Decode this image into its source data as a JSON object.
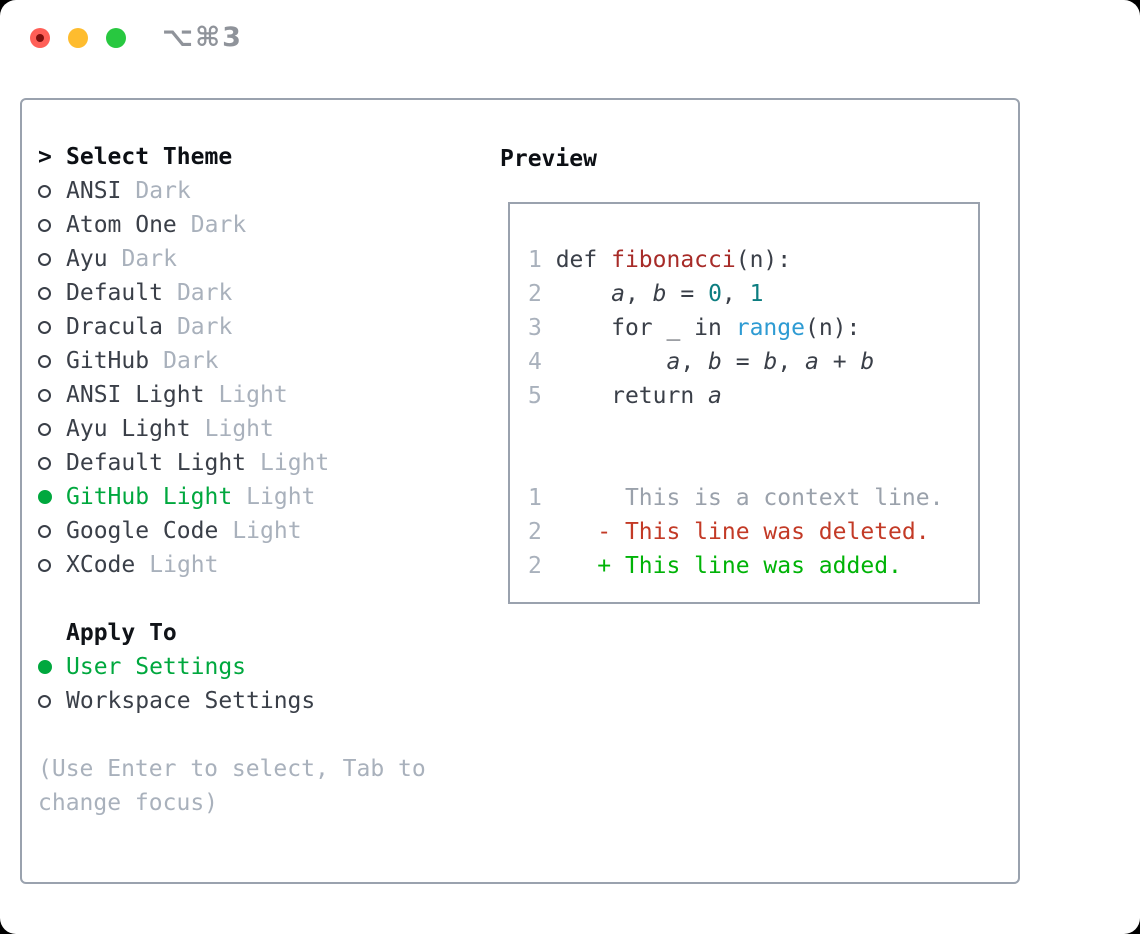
{
  "window": {
    "shortcut_label": "⌥⌘3",
    "traffic_lights": [
      "close",
      "minimize",
      "zoom"
    ]
  },
  "colors": {
    "accent_green": "#00a83e",
    "added_green": "#00b307",
    "deleted_red": "#c33a26",
    "function_red": "#a72b28",
    "number_teal": "#0c7d80",
    "builtin_blue": "#2e9bd3",
    "muted_gray": "#a9b1bc",
    "text_dark": "#3a3f48",
    "border_gray": "#9aa2ae"
  },
  "sidebar": {
    "header": {
      "prompt": ">",
      "label": "Select Theme"
    },
    "themes": [
      {
        "name": "ANSI",
        "variant": "Dark",
        "selected": false
      },
      {
        "name": "Atom One",
        "variant": "Dark",
        "selected": false
      },
      {
        "name": "Ayu",
        "variant": "Dark",
        "selected": false
      },
      {
        "name": "Default",
        "variant": "Dark",
        "selected": false
      },
      {
        "name": "Dracula",
        "variant": "Dark",
        "selected": false
      },
      {
        "name": "GitHub",
        "variant": "Dark",
        "selected": false
      },
      {
        "name": "ANSI Light",
        "variant": "Light",
        "selected": false
      },
      {
        "name": "Ayu Light",
        "variant": "Light",
        "selected": false
      },
      {
        "name": "Default Light",
        "variant": "Light",
        "selected": false
      },
      {
        "name": "GitHub Light",
        "variant": "Light",
        "selected": true
      },
      {
        "name": "Google Code",
        "variant": "Light",
        "selected": false
      },
      {
        "name": "XCode",
        "variant": "Light",
        "selected": false
      }
    ],
    "apply_to": {
      "label": "Apply To",
      "options": [
        {
          "name": "User Settings",
          "selected": true
        },
        {
          "name": "Workspace Settings",
          "selected": false
        }
      ]
    },
    "hint_lines": [
      "(Use Enter to select, Tab to",
      "change focus)"
    ]
  },
  "preview": {
    "title": "Preview",
    "code_lines": [
      {
        "num": "1",
        "tokens": [
          {
            "t": "def ",
            "c": "plain"
          },
          {
            "t": "fibonacci",
            "c": "func"
          },
          {
            "t": "(n):",
            "c": "plain"
          }
        ]
      },
      {
        "num": "2",
        "tokens": [
          {
            "t": "    ",
            "c": "plain"
          },
          {
            "t": "a",
            "c": "var"
          },
          {
            "t": ", ",
            "c": "plain"
          },
          {
            "t": "b",
            "c": "var"
          },
          {
            "t": " = ",
            "c": "plain"
          },
          {
            "t": "0",
            "c": "num"
          },
          {
            "t": ", ",
            "c": "plain"
          },
          {
            "t": "1",
            "c": "num"
          }
        ]
      },
      {
        "num": "3",
        "tokens": [
          {
            "t": "    for _ in ",
            "c": "plain"
          },
          {
            "t": "range",
            "c": "builtin"
          },
          {
            "t": "(n):",
            "c": "plain"
          }
        ]
      },
      {
        "num": "4",
        "tokens": [
          {
            "t": "        ",
            "c": "plain"
          },
          {
            "t": "a",
            "c": "var"
          },
          {
            "t": ", ",
            "c": "plain"
          },
          {
            "t": "b",
            "c": "var"
          },
          {
            "t": " = ",
            "c": "plain"
          },
          {
            "t": "b",
            "c": "var"
          },
          {
            "t": ", ",
            "c": "plain"
          },
          {
            "t": "a",
            "c": "var"
          },
          {
            "t": " + ",
            "c": "plain"
          },
          {
            "t": "b",
            "c": "var"
          }
        ]
      },
      {
        "num": "5",
        "tokens": [
          {
            "t": "    return ",
            "c": "plain"
          },
          {
            "t": "a",
            "c": "var"
          }
        ]
      },
      {
        "num": "1",
        "gap_before": true,
        "tokens": [
          {
            "t": "     This is a context line.",
            "c": "ctx"
          }
        ]
      },
      {
        "num": "2",
        "tokens": [
          {
            "t": "   - This line was deleted.",
            "c": "del"
          }
        ]
      },
      {
        "num": "2",
        "tokens": [
          {
            "t": "   + This line was added.",
            "c": "add"
          }
        ]
      }
    ]
  }
}
